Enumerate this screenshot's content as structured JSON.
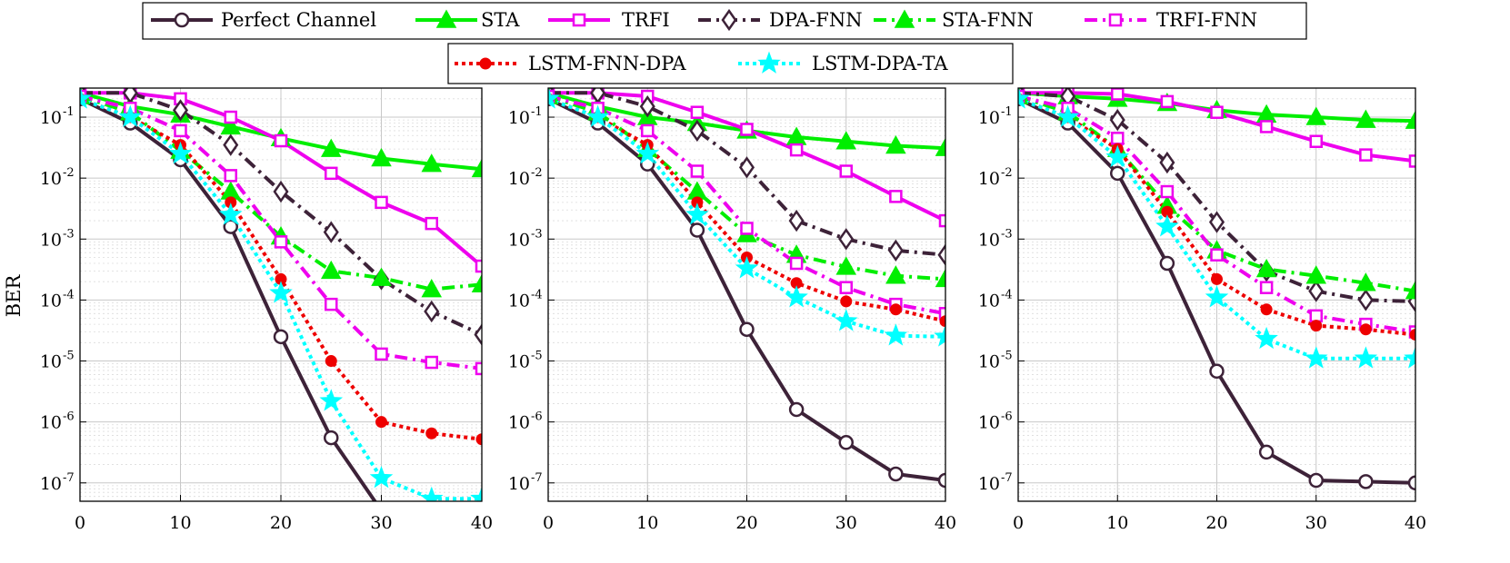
{
  "chart_data": {
    "type": "line",
    "ylabel": "BER",
    "x": [
      0,
      5,
      10,
      15,
      20,
      25,
      30,
      35,
      40
    ],
    "x_ticks": [
      "0",
      "10",
      "20",
      "30",
      "40"
    ],
    "x_tick_values": [
      0,
      10,
      20,
      30,
      40
    ],
    "y_scale": "log",
    "ylim": [
      5e-08,
      0.3
    ],
    "xlim": [
      0,
      40
    ],
    "y_ticks": [
      {
        "value": 1e-07,
        "base": "10",
        "exp": "-7"
      },
      {
        "value": 1e-06,
        "base": "10",
        "exp": "-6"
      },
      {
        "value": 1e-05,
        "base": "10",
        "exp": "-5"
      },
      {
        "value": 0.0001,
        "base": "10",
        "exp": "-4"
      },
      {
        "value": 0.001,
        "base": "10",
        "exp": "-3"
      },
      {
        "value": 0.01,
        "base": "10",
        "exp": "-2"
      },
      {
        "value": 0.1,
        "base": "10",
        "exp": "-1"
      }
    ],
    "grid": true,
    "legend_placement": "top",
    "series_styles": [
      {
        "name": "Perfect Channel",
        "color": "#3d2238",
        "dash": "solid",
        "marker": "circle",
        "fill": "none"
      },
      {
        "name": "STA",
        "color": "#00ee00",
        "dash": "solid",
        "marker": "triangle",
        "fill": "#00ee00"
      },
      {
        "name": "TRFI",
        "color": "#ee00ee",
        "dash": "solid",
        "marker": "square",
        "fill": "none"
      },
      {
        "name": "DPA-FNN",
        "color": "#3d2238",
        "dash": "dashdot",
        "marker": "diamond",
        "fill": "none"
      },
      {
        "name": "STA-FNN",
        "color": "#00ee00",
        "dash": "dashdot",
        "marker": "triangle",
        "fill": "#00ee00"
      },
      {
        "name": "TRFI-FNN",
        "color": "#ee00ee",
        "dash": "dashdot",
        "marker": "square",
        "fill": "none"
      },
      {
        "name": "LSTM-FNN-DPA",
        "color": "#ee0000",
        "dash": "dotted",
        "marker": "dot",
        "fill": "#ee0000"
      },
      {
        "name": "LSTM-DPA-TA",
        "color": "#00ffff",
        "dash": "dotted",
        "marker": "star",
        "fill": "#00ffff"
      }
    ],
    "panels": [
      {
        "series": [
          {
            "name": "Perfect Channel",
            "values": [
              0.2,
              0.08,
              0.02,
              0.0016,
              2.5e-05,
              5.5e-07,
              3.5e-08,
              null,
              null
            ]
          },
          {
            "name": "STA",
            "values": [
              0.25,
              0.15,
              0.11,
              0.07,
              0.045,
              0.03,
              0.021,
              0.017,
              0.014
            ]
          },
          {
            "name": "TRFI",
            "values": [
              0.25,
              0.25,
              0.2,
              0.1,
              0.041,
              0.012,
              0.004,
              0.0018,
              0.00036
            ]
          },
          {
            "name": "DPA-FNN",
            "values": [
              0.25,
              0.25,
              0.13,
              0.035,
              0.006,
              0.0013,
              0.00022,
              6.5e-05,
              2.7e-05
            ]
          },
          {
            "name": "STA-FNN",
            "values": [
              0.22,
              0.12,
              0.028,
              0.006,
              0.0011,
              0.0003,
              0.00023,
              0.00015,
              0.00018
            ]
          },
          {
            "name": "TRFI-FNN",
            "values": [
              0.22,
              0.14,
              0.06,
              0.011,
              0.0009,
              8.5e-05,
              1.3e-05,
              9.5e-06,
              7.5e-06
            ]
          },
          {
            "name": "LSTM-FNN-DPA",
            "values": [
              0.2,
              0.1,
              0.035,
              0.004,
              0.00022,
              1e-05,
              1e-06,
              6.5e-07,
              5.2e-07
            ]
          },
          {
            "name": "LSTM-DPA-TA",
            "values": [
              0.2,
              0.1,
              0.025,
              0.0025,
              0.00013,
              2.2e-06,
              1.2e-07,
              5.5e-08,
              5.5e-08
            ]
          }
        ]
      },
      {
        "series": [
          {
            "name": "Perfect Channel",
            "values": [
              0.2,
              0.08,
              0.017,
              0.0014,
              3.3e-05,
              1.6e-06,
              4.6e-07,
              1.4e-07,
              1.1e-07
            ]
          },
          {
            "name": "STA",
            "values": [
              0.25,
              0.15,
              0.1,
              0.08,
              0.06,
              0.047,
              0.04,
              0.034,
              0.031
            ]
          },
          {
            "name": "TRFI",
            "values": [
              0.25,
              0.25,
              0.22,
              0.12,
              0.063,
              0.029,
              0.013,
              0.005,
              0.002
            ]
          },
          {
            "name": "DPA-FNN",
            "values": [
              0.25,
              0.25,
              0.15,
              0.06,
              0.015,
              0.002,
              0.001,
              0.00065,
              0.00055
            ]
          },
          {
            "name": "STA-FNN",
            "values": [
              0.22,
              0.12,
              0.03,
              0.006,
              0.0012,
              0.00055,
              0.00035,
              0.00025,
              0.00022
            ]
          },
          {
            "name": "TRFI-FNN",
            "values": [
              0.22,
              0.14,
              0.06,
              0.013,
              0.0015,
              0.0004,
              0.00016,
              8.5e-05,
              6e-05
            ]
          },
          {
            "name": "LSTM-FNN-DPA",
            "values": [
              0.2,
              0.1,
              0.035,
              0.004,
              0.0005,
              0.00019,
              9.5e-05,
              7e-05,
              4.5e-05
            ]
          },
          {
            "name": "LSTM-DPA-TA",
            "values": [
              0.2,
              0.1,
              0.025,
              0.0025,
              0.00033,
              0.00011,
              4.5e-05,
              2.6e-05,
              2.5e-05
            ]
          }
        ]
      },
      {
        "series": [
          {
            "name": "Perfect Channel",
            "values": [
              0.2,
              0.08,
              0.012,
              0.0004,
              6.8e-06,
              3.2e-07,
              1.1e-07,
              1.05e-07,
              1e-07
            ]
          },
          {
            "name": "STA",
            "values": [
              0.25,
              0.22,
              0.2,
              0.17,
              0.13,
              0.11,
              0.1,
              0.09,
              0.087
            ]
          },
          {
            "name": "TRFI",
            "values": [
              0.25,
              0.25,
              0.24,
              0.18,
              0.12,
              0.07,
              0.04,
              0.024,
              0.019
            ]
          },
          {
            "name": "DPA-FNN",
            "values": [
              0.25,
              0.22,
              0.09,
              0.018,
              0.0019,
              0.0003,
              0.00014,
              0.0001,
              9.5e-05
            ]
          },
          {
            "name": "STA-FNN",
            "values": [
              0.22,
              0.12,
              0.03,
              0.0035,
              0.00065,
              0.00032,
              0.00025,
              0.00019,
              0.00014
            ]
          },
          {
            "name": "TRFI-FNN",
            "values": [
              0.22,
              0.14,
              0.045,
              0.006,
              0.00055,
              0.00016,
              5.5e-05,
              4e-05,
              3e-05
            ]
          },
          {
            "name": "LSTM-FNN-DPA",
            "values": [
              0.2,
              0.1,
              0.03,
              0.0028,
              0.00022,
              7e-05,
              3.8e-05,
              3.3e-05,
              2.7e-05
            ]
          },
          {
            "name": "LSTM-DPA-TA",
            "values": [
              0.2,
              0.1,
              0.022,
              0.0016,
              0.00011,
              2.3e-05,
              1.1e-05,
              1.1e-05,
              1.1e-05
            ]
          }
        ]
      }
    ]
  }
}
